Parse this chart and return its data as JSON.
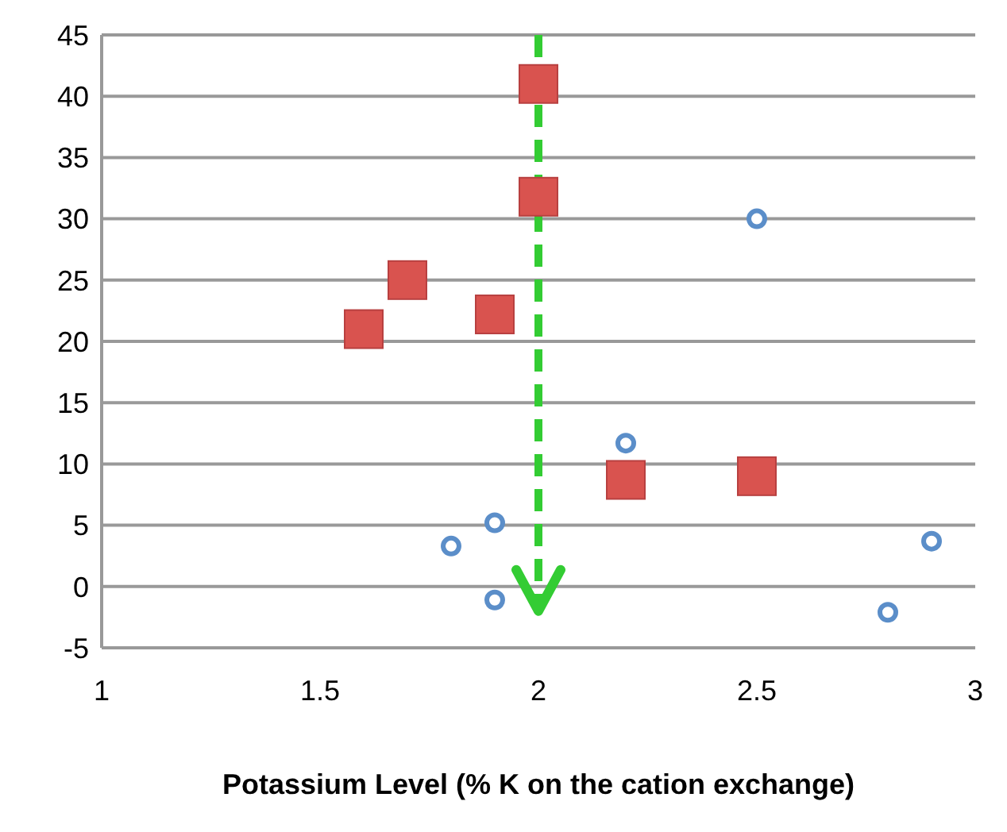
{
  "chart_data": {
    "type": "scatter",
    "xlabel": "Potassium Level (% K on the cation exchange)",
    "series": [
      {
        "color": "#d9534f",
        "marker": "square",
        "x": [
          1.6,
          1.7,
          1.9,
          2.0,
          2.0,
          2.2,
          2.5
        ],
        "values": [
          21,
          25,
          22.2,
          41,
          31.8,
          8.7,
          9
        ]
      },
      {
        "color": "#5b8ec9",
        "marker": "circle",
        "x": [
          2.5,
          2.2,
          1.9,
          1.8,
          1.9,
          2.8,
          2.9
        ],
        "values": [
          30,
          11.7,
          5.2,
          3.3,
          -1.1,
          -2.1,
          3.7
        ]
      }
    ],
    "xlim": [
      1,
      3
    ],
    "xticks": [
      1,
      1.5,
      2,
      2.5,
      3
    ],
    "ylim": [
      -5,
      45
    ],
    "yticks": [
      -5,
      0,
      5,
      10,
      15,
      20,
      25,
      30,
      35,
      40,
      45
    ],
    "grid": "y",
    "ref_lines": [
      {
        "axis": "x",
        "value": 2,
        "color": "#33cc33",
        "line_style": "dashed"
      }
    ]
  }
}
